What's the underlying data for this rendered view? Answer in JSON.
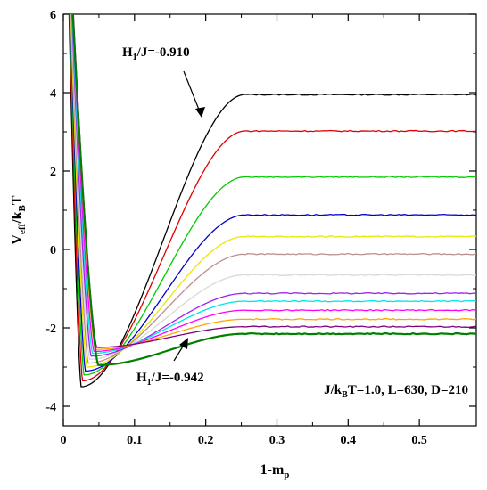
{
  "chart_data": {
    "type": "line",
    "xlabel": "1-m_p",
    "ylabel": "V_eff/k_BT",
    "xlim": [
      0,
      0.58
    ],
    "ylim": [
      -4.5,
      6
    ],
    "xticks": [
      0,
      0.1,
      0.2,
      0.3,
      0.4,
      0.5
    ],
    "xtick_labels": [
      "0",
      "0.1",
      "0.2",
      "0.3",
      "0.4",
      "0.5"
    ],
    "yticks": [
      -4,
      -2,
      0,
      2,
      4,
      6
    ],
    "ytick_labels": [
      "-4",
      "-2",
      "0",
      "2",
      "4",
      "6"
    ],
    "grid": false,
    "legend": "none",
    "annotations": {
      "top": {
        "text": "H_1/J=-0.910",
        "main": "H",
        "sub": "1",
        "rest": "/J=-0.910"
      },
      "bottom": {
        "text": "H_1/J=-0.942",
        "main": "H",
        "sub": "1",
        "rest": "/J=-0.942"
      },
      "params": {
        "text": "J/k_BT=1.0, L=630, D=210",
        "main": "J/k",
        "sub": "B",
        "rest": "T=1.0, L=630, D=210"
      }
    },
    "series": [
      {
        "color": "#000000",
        "min_x": 0.025,
        "min_y": -3.5,
        "plateau": 3.95
      },
      {
        "color": "#e00000",
        "min_x": 0.027,
        "min_y": -3.35,
        "plateau": 3.02
      },
      {
        "color": "#00cc00",
        "min_x": 0.029,
        "min_y": -3.2,
        "plateau": 1.85
      },
      {
        "color": "#0000cc",
        "min_x": 0.031,
        "min_y": -3.1,
        "plateau": 0.88
      },
      {
        "color": "#e8e800",
        "min_x": 0.033,
        "min_y": -3.0,
        "plateau": 0.33
      },
      {
        "color": "#bc8f8f",
        "min_x": 0.035,
        "min_y": -2.9,
        "plateau": -0.12
      },
      {
        "color": "#d8d8d8",
        "min_x": 0.037,
        "min_y": -2.8,
        "plateau": -0.65
      },
      {
        "color": "#a020f0",
        "min_x": 0.039,
        "min_y": -2.72,
        "plateau": -1.12
      },
      {
        "color": "#00e5e5",
        "min_x": 0.041,
        "min_y": -2.65,
        "plateau": -1.32
      },
      {
        "color": "#ff00ff",
        "min_x": 0.043,
        "min_y": -2.6,
        "plateau": -1.55
      },
      {
        "color": "#ffa500",
        "min_x": 0.045,
        "min_y": -2.55,
        "plateau": -1.78
      },
      {
        "color": "#800080",
        "min_x": 0.047,
        "min_y": -2.5,
        "plateau": -1.97
      },
      {
        "color": "#008000",
        "min_x": 0.049,
        "min_y": -2.95,
        "plateau": -2.15
      }
    ]
  }
}
